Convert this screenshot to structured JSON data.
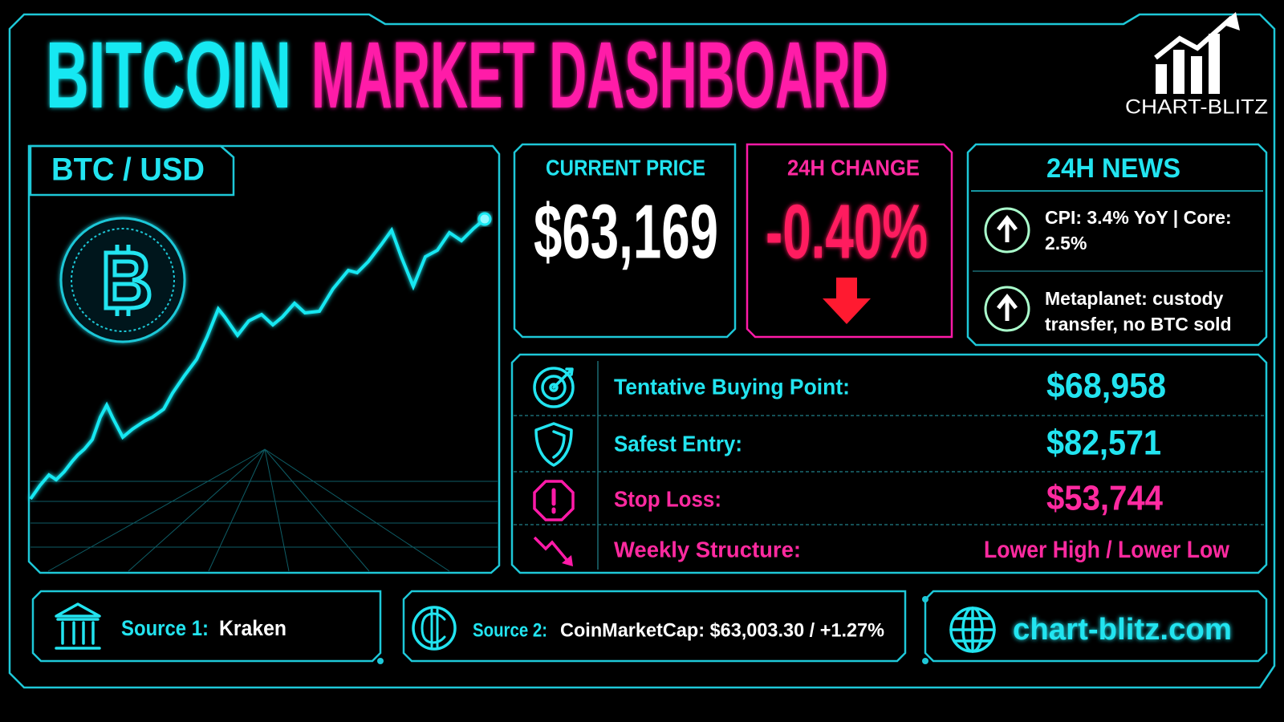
{
  "header": {
    "title_part1": "BITCOIN",
    "title_part2": "MARKET DASHBOARD",
    "logo_text": "CHART-BLITZ"
  },
  "chart_panel": {
    "label": "BTC / USD"
  },
  "current_price": {
    "label": "CURRENT PRICE",
    "value": "$63,169"
  },
  "change_24h": {
    "label": "24H CHANGE",
    "value": "-0.40%"
  },
  "news": {
    "title": "24H NEWS",
    "items": [
      "CPI: 3.4% YoY | Core: 2.5%",
      "Metaplanet: custody transfer, no BTC sold"
    ]
  },
  "levels": {
    "rows": [
      {
        "label": "Tentative Buying Point:",
        "value": "$68,958"
      },
      {
        "label": "Safest Entry:",
        "value": "$82,571"
      },
      {
        "label": "Stop Loss:",
        "value": "$53,744"
      },
      {
        "label": "Weekly Structure:",
        "value": "Lower High / Lower Low"
      }
    ]
  },
  "sources": [
    {
      "label": "Source 1:",
      "value": "Kraken"
    },
    {
      "label": "Source 2:",
      "value": "CoinMarketCap: $63,003.30 / +1.27%"
    }
  ],
  "website": "chart-blitz.com"
}
